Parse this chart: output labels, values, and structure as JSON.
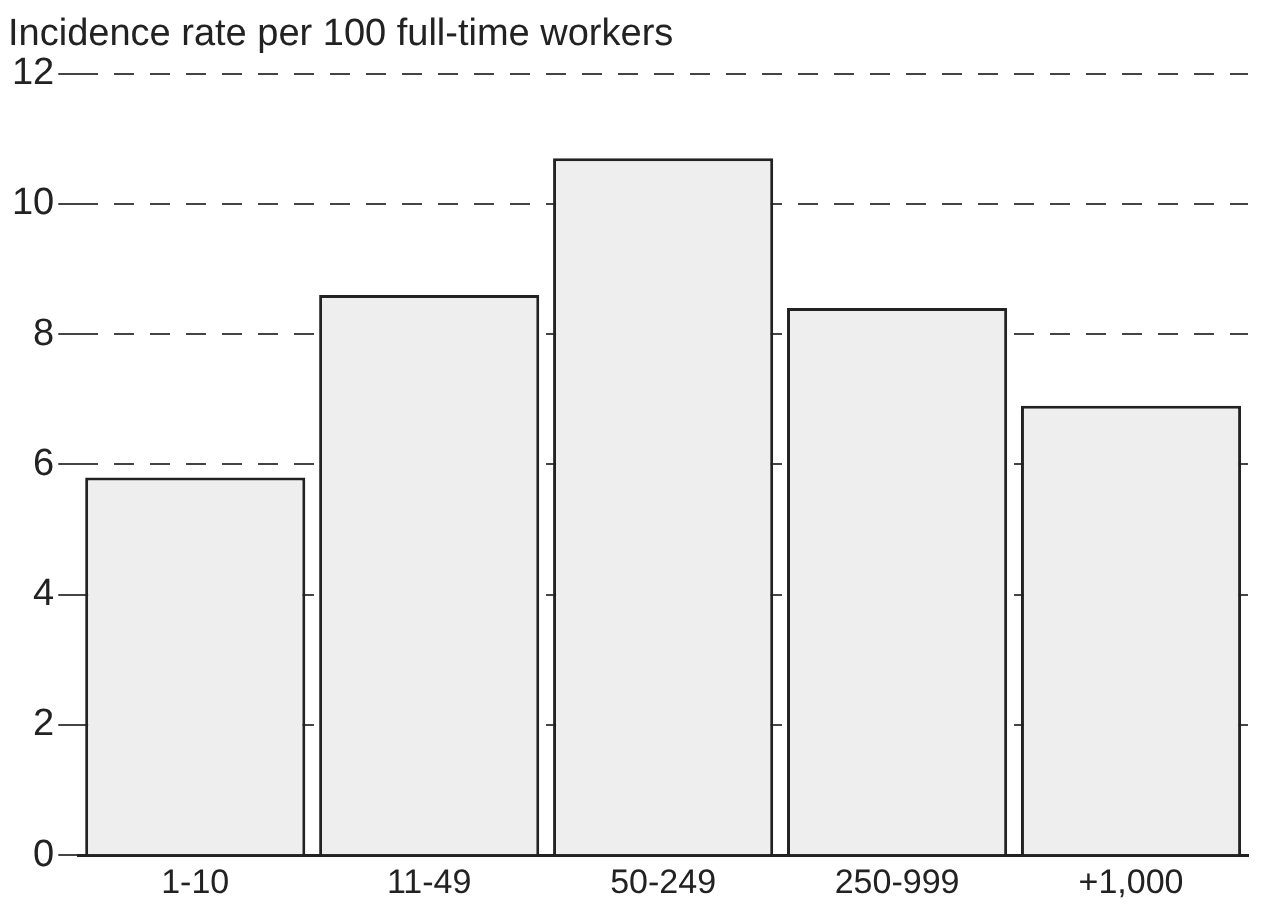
{
  "chart_data": {
    "type": "bar",
    "title": "Incidence rate per 100 full-time workers",
    "categories": [
      "1-10",
      "11-49",
      "50-249",
      "250-999",
      "+1,000"
    ],
    "values": [
      5.8,
      8.6,
      10.7,
      8.4,
      6.9
    ],
    "color": "#eeeeee",
    "ylim": [
      0,
      12
    ],
    "yticks": [
      0,
      2,
      4,
      6,
      8,
      10,
      12
    ],
    "grid": "y",
    "line_style": "dashed",
    "legend": false
  }
}
